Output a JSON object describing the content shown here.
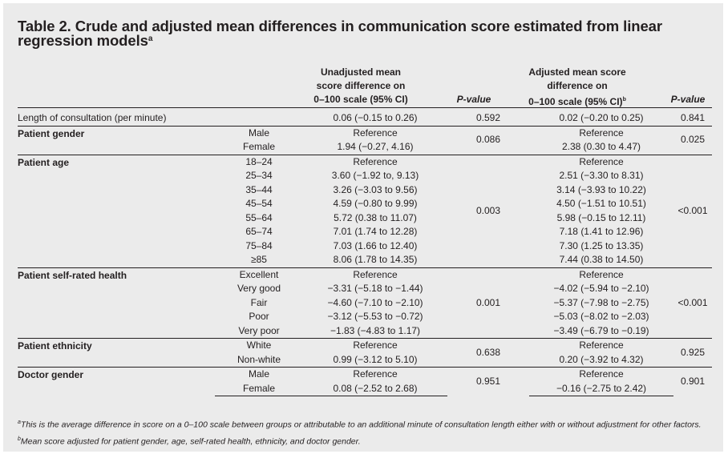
{
  "title": "Table 2. Crude and adjusted mean differences in communication score estimated from linear regression models",
  "title_sup": "a",
  "headers": {
    "unadjusted": [
      "Unadjusted mean",
      "score difference on",
      "0–100 scale (95% CI)"
    ],
    "pvalue_1": "P-value",
    "adjusted": [
      "Adjusted mean score",
      "difference on",
      "0–100 scale (95% CI)"
    ],
    "adjusted_sup": "b",
    "pvalue_2": "P-value"
  },
  "rows": [
    {
      "variable": "Length of consultation (per minute)",
      "bold": false,
      "p_unadj": "0.592",
      "p_adj": "0.841",
      "levels": [
        {
          "level": "",
          "unadj": "0.06 (−0.15 to 0.26)",
          "adj": "0.02 (−0.20 to 0.25)"
        }
      ]
    },
    {
      "variable": "Patient gender",
      "bold": true,
      "p_unadj": "0.086",
      "p_adj": "0.025",
      "levels": [
        {
          "level": "Male",
          "unadj": "Reference",
          "adj": "Reference"
        },
        {
          "level": "Female",
          "unadj": "1.94 (−0.27, 4.16)",
          "adj": "2.38 (0.30 to 4.47)"
        }
      ]
    },
    {
      "variable": "Patient age",
      "bold": true,
      "p_unadj": "0.003",
      "p_adj": "<0.001",
      "levels": [
        {
          "level": "18–24",
          "unadj": "Reference",
          "adj": "Reference"
        },
        {
          "level": "25–34",
          "unadj": "3.60 (−1.92 to, 9.13)",
          "adj": "2.51 (−3.30 to 8.31)"
        },
        {
          "level": "35–44",
          "unadj": "3.26 (−3.03 to 9.56)",
          "adj": "3.14 (−3.93 to 10.22)"
        },
        {
          "level": "45–54",
          "unadj": "4.59 (−0.80 to 9.99)",
          "adj": "4.50 (−1.51 to 10.51)"
        },
        {
          "level": "55–64",
          "unadj": "5.72 (0.38 to 11.07)",
          "adj": "5.98 (−0.15 to 12.11)"
        },
        {
          "level": "65–74",
          "unadj": "7.01 (1.74 to 12.28)",
          "adj": "7.18 (1.41 to 12.96)"
        },
        {
          "level": "75–84",
          "unadj": "7.03 (1.66 to 12.40)",
          "adj": "7.30 (1.25 to 13.35)"
        },
        {
          "level": "≥85",
          "unadj": "8.06 (1.78 to 14.35)",
          "adj": "7.44 (0.38 to 14.50)"
        }
      ]
    },
    {
      "variable": "Patient self-rated health",
      "bold": true,
      "p_unadj": "0.001",
      "p_adj": "<0.001",
      "levels": [
        {
          "level": "Excellent",
          "unadj": "Reference",
          "adj": "Reference"
        },
        {
          "level": "Very good",
          "unadj": "−3.31 (−5.18 to −1.44)",
          "adj": "−4.02 (−5.94 to −2.10)"
        },
        {
          "level": "Fair",
          "unadj": "−4.60 (−7.10 to −2.10)",
          "adj": "−5.37 (−7.98 to −2.75)"
        },
        {
          "level": "Poor",
          "unadj": "−3.12 (−5.53 to −0.72)",
          "adj": "−5.03 (−8.02 to −2.03)"
        },
        {
          "level": "Very poor",
          "unadj": "−1.83 (−4.83 to 1.17)",
          "adj": "−3.49 (−6.79 to −0.19)"
        }
      ]
    },
    {
      "variable": "Patient ethnicity",
      "bold": true,
      "p_unadj": "0.638",
      "p_adj": "0.925",
      "levels": [
        {
          "level": "White",
          "unadj": "Reference",
          "adj": "Reference"
        },
        {
          "level": "Non-white",
          "unadj": "0.99 (−3.12 to 5.10)",
          "adj": "0.20 (−3.92 to 4.32)"
        }
      ]
    },
    {
      "variable": "Doctor gender",
      "bold": true,
      "p_unadj": "0.951",
      "p_adj": "0.901",
      "levels": [
        {
          "level": "Male",
          "unadj": "Reference",
          "adj": "Reference"
        },
        {
          "level": "Female",
          "unadj": "0.08 (−2.52 to 2.68)",
          "adj": "−0.16 (−2.75 to 2.42)"
        }
      ]
    }
  ],
  "footnote": {
    "a_mark": "a",
    "a_text": "This is the average difference in score on a 0–100 scale between groups or attributable to an additional minute of consultation length either with or without adjustment for other factors.",
    "b_mark": "b",
    "b_text": "Mean score adjusted for patient gender, age, self-rated health, ethnicity, and doctor gender."
  }
}
